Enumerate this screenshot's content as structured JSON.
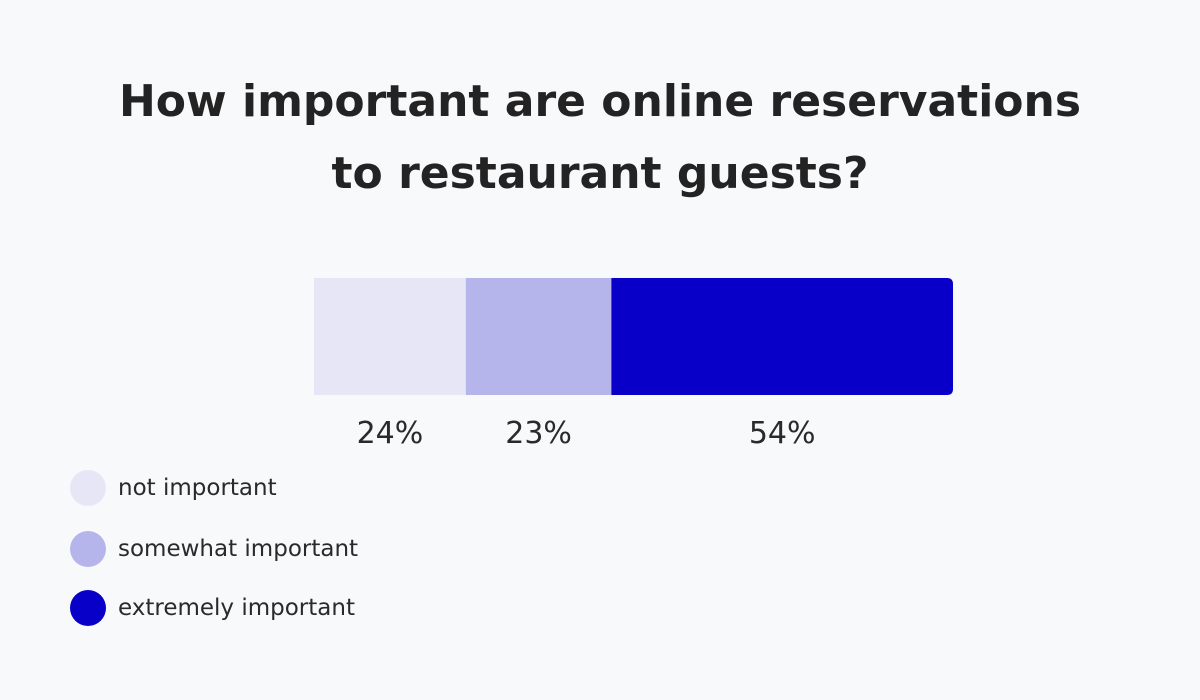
{
  "chart_data": {
    "type": "bar",
    "orientation": "horizontal-stacked",
    "title_lines": [
      "How important are online reservations",
      "to restaurant guests?"
    ],
    "categories": [
      "not important",
      "somewhat important",
      "extremely important"
    ],
    "values": [
      24,
      23,
      54
    ],
    "value_labels": [
      "24%",
      "23%",
      "54%"
    ],
    "unit": "%",
    "colors": [
      "#e6e6f7",
      "#b5b5ec",
      "#0800c8"
    ],
    "legend_position": "bottom-left",
    "grid": false
  },
  "legend": {
    "items": [
      {
        "label": "not important",
        "color": "#e6e6f7"
      },
      {
        "label": "somewhat important",
        "color": "#b5b5ec"
      },
      {
        "label": "extremely important",
        "color": "#0800c8"
      }
    ]
  }
}
